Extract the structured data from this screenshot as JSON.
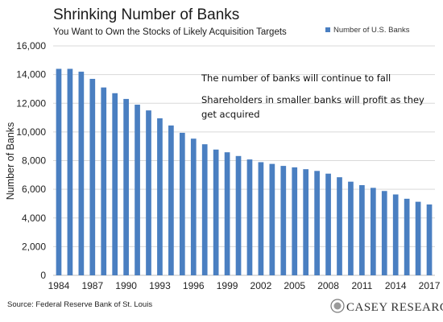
{
  "chart_data": {
    "type": "bar",
    "title": "Shrinking Number of Banks",
    "subtitle": "You Want to Own the Stocks of Likely Acquisition Targets",
    "ylabel": "Number of Banks",
    "xlabel": "",
    "ylim": [
      0,
      16000
    ],
    "yticks": [
      "0",
      "2,000",
      "4,000",
      "6,000",
      "8,000",
      "10,000",
      "12,000",
      "14,000",
      "16,000"
    ],
    "ytick_values": [
      0,
      2000,
      4000,
      6000,
      8000,
      10000,
      12000,
      14000,
      16000
    ],
    "grid": true,
    "legend_position": "top-right",
    "categories": [
      1984,
      1985,
      1986,
      1987,
      1988,
      1989,
      1990,
      1991,
      1992,
      1993,
      1994,
      1995,
      1996,
      1997,
      1998,
      1999,
      2000,
      2001,
      2002,
      2003,
      2004,
      2005,
      2006,
      2007,
      2008,
      2009,
      2010,
      2011,
      2012,
      2013,
      2014,
      2015,
      2016,
      2017
    ],
    "xtick_labels": [
      "1984",
      "1987",
      "1990",
      "1993",
      "1996",
      "1999",
      "2002",
      "2005",
      "2008",
      "2011",
      "2014",
      "2017"
    ],
    "series": [
      {
        "name": "Number of U.S. Banks",
        "color": "#4a7fc1",
        "values": [
          14400,
          14400,
          14200,
          13700,
          13100,
          12700,
          12300,
          11900,
          11500,
          10950,
          10450,
          9940,
          9530,
          9140,
          8770,
          8580,
          8320,
          8080,
          7890,
          7770,
          7630,
          7530,
          7400,
          7280,
          7090,
          6840,
          6530,
          6290,
          6100,
          5880,
          5640,
          5340,
          5130,
          4940
        ]
      }
    ],
    "annotations": [
      "The number of banks will continue to fall",
      "Shareholders in smaller banks will profit as they",
      "get acquired"
    ],
    "source": "Source: Federal Reserve Bank of St. Louis",
    "brand": "CASEY RESEARCH"
  }
}
